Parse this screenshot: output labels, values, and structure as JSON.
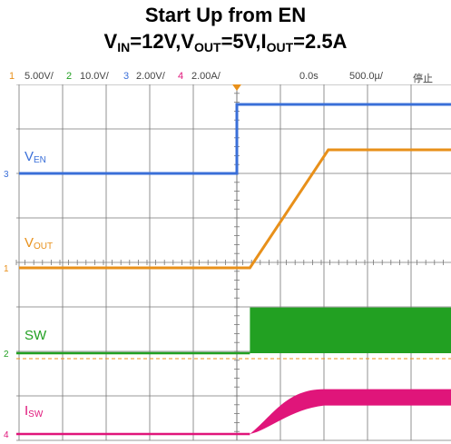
{
  "title_line1": "Start Up from EN",
  "title_line2": {
    "v_in": "V",
    "v_in_sub": "IN",
    "v_in_val": "=12V,",
    "v_out": "V",
    "v_out_sub": "OUT",
    "v_out_val": "=5V,",
    "i_out": "I",
    "i_out_sub": "OUT",
    "i_out_val": "=2.5A"
  },
  "status_bar": {
    "ch1_num": "1",
    "ch1_scale": "5.00V/",
    "ch2_num": "2",
    "ch2_scale": "10.0V/",
    "ch3_num": "3",
    "ch3_scale": "2.00V/",
    "ch4_num": "4",
    "ch4_scale": "2.00A/",
    "trigger_time": "0.0s",
    "timebase": "500.0µ/",
    "run_state": "停止"
  },
  "colors": {
    "ch1": "#e8901a",
    "ch2": "#22a022",
    "ch3": "#3a6fd8",
    "ch4": "#e0157a",
    "grid": "#777777"
  },
  "trace_labels": {
    "ven": {
      "main": "V",
      "sub": "EN"
    },
    "vout": {
      "main": "V",
      "sub": "OUT"
    },
    "sw": {
      "main": "SW",
      "sub": ""
    },
    "isw": {
      "main": "I",
      "sub": "SW"
    }
  },
  "chart_data": {
    "type": "line",
    "x_unit": "divisions (500µs/div)",
    "xlim": [
      -5,
      5
    ],
    "series": [
      {
        "name": "VEN",
        "channel": "3",
        "x": [
          -5,
          0,
          0,
          5
        ],
        "y": [
          0,
          0,
          3.8,
          3.8
        ]
      },
      {
        "name": "VOUT",
        "channel": "1",
        "x": [
          -5,
          0.3,
          2.1,
          5
        ],
        "y": [
          0,
          0,
          5,
          5
        ]
      },
      {
        "name": "SW",
        "channel": "2",
        "x": [
          -5,
          0.3,
          0.3,
          5
        ],
        "y": [
          0,
          0,
          12,
          12
        ]
      },
      {
        "name": "ISW",
        "channel": "4",
        "x": [
          -5,
          0.3,
          2.0,
          5
        ],
        "y": [
          0,
          0,
          2.6,
          2.6
        ]
      }
    ]
  }
}
